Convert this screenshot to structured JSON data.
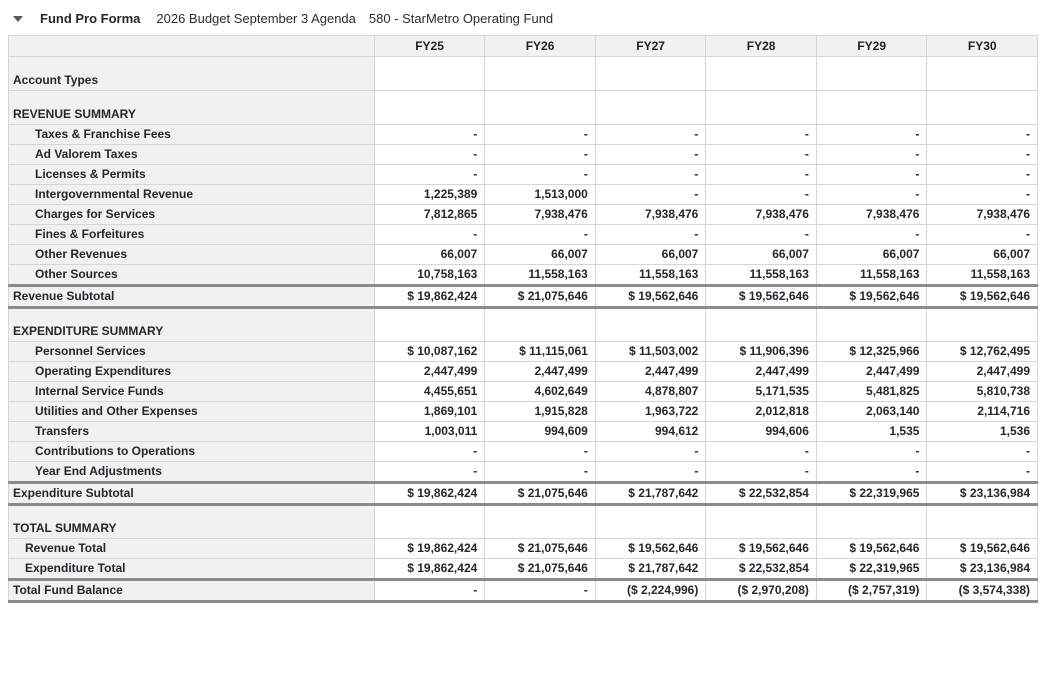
{
  "title_bar": {
    "collapse_icon": "triangle-down-icon",
    "title": "Fund Pro Forma",
    "budget": "2026 Budget September 3 Agenda",
    "fund": "580 - StarMetro Operating Fund"
  },
  "colors": {
    "header_bg": "#f1f1f1",
    "label_column_bg": "#f1f1f1",
    "grid_line": "#d6d6d6",
    "heavy_border": "#8b8b8b",
    "text": "#26262e"
  },
  "table": {
    "columns": [
      "FY25",
      "FY26",
      "FY27",
      "FY28",
      "FY29",
      "FY30"
    ],
    "rows": [
      {
        "label": "Account Types",
        "type": "section",
        "values": [
          "",
          "",
          "",
          "",
          "",
          ""
        ]
      },
      {
        "label": "REVENUE SUMMARY",
        "type": "section",
        "values": [
          "",
          "",
          "",
          "",
          "",
          ""
        ]
      },
      {
        "label": "Taxes & Franchise Fees",
        "type": "detail",
        "values": [
          "-",
          "-",
          "-",
          "-",
          "-",
          "-"
        ]
      },
      {
        "label": "Ad Valorem Taxes",
        "type": "detail",
        "values": [
          "-",
          "-",
          "-",
          "-",
          "-",
          "-"
        ]
      },
      {
        "label": "Licenses & Permits",
        "type": "detail",
        "values": [
          "-",
          "-",
          "-",
          "-",
          "-",
          "-"
        ]
      },
      {
        "label": "Intergovernmental Revenue",
        "type": "detail",
        "values": [
          "1,225,389",
          "1,513,000",
          "-",
          "-",
          "-",
          "-"
        ]
      },
      {
        "label": "Charges for Services",
        "type": "detail",
        "values": [
          "7,812,865",
          "7,938,476",
          "7,938,476",
          "7,938,476",
          "7,938,476",
          "7,938,476"
        ]
      },
      {
        "label": "Fines & Forfeitures",
        "type": "detail",
        "values": [
          "-",
          "-",
          "-",
          "-",
          "-",
          "-"
        ]
      },
      {
        "label": "Other Revenues",
        "type": "detail",
        "values": [
          "66,007",
          "66,007",
          "66,007",
          "66,007",
          "66,007",
          "66,007"
        ]
      },
      {
        "label": "Other Sources",
        "type": "detail",
        "values": [
          "10,758,163",
          "11,558,163",
          "11,558,163",
          "11,558,163",
          "11,558,163",
          "11,558,163"
        ]
      },
      {
        "label": "Revenue Subtotal",
        "type": "subtotal",
        "values": [
          "$ 19,862,424",
          "$ 21,075,646",
          "$ 19,562,646",
          "$ 19,562,646",
          "$ 19,562,646",
          "$ 19,562,646"
        ]
      },
      {
        "label": "EXPENDITURE SUMMARY",
        "type": "section",
        "values": [
          "",
          "",
          "",
          "",
          "",
          ""
        ]
      },
      {
        "label": "Personnel Services",
        "type": "detail",
        "values": [
          "$ 10,087,162",
          "$ 11,115,061",
          "$ 11,503,002",
          "$ 11,906,396",
          "$ 12,325,966",
          "$ 12,762,495"
        ]
      },
      {
        "label": "Operating Expenditures",
        "type": "detail",
        "values": [
          "2,447,499",
          "2,447,499",
          "2,447,499",
          "2,447,499",
          "2,447,499",
          "2,447,499"
        ]
      },
      {
        "label": "Internal Service Funds",
        "type": "detail",
        "values": [
          "4,455,651",
          "4,602,649",
          "4,878,807",
          "5,171,535",
          "5,481,825",
          "5,810,738"
        ]
      },
      {
        "label": "Utilities and Other Expenses",
        "type": "detail",
        "values": [
          "1,869,101",
          "1,915,828",
          "1,963,722",
          "2,012,818",
          "2,063,140",
          "2,114,716"
        ]
      },
      {
        "label": "Transfers",
        "type": "detail",
        "values": [
          "1,003,011",
          "994,609",
          "994,612",
          "994,606",
          "1,535",
          "1,536"
        ]
      },
      {
        "label": "Contributions to Operations",
        "type": "detail",
        "values": [
          "-",
          "-",
          "-",
          "-",
          "-",
          "-"
        ]
      },
      {
        "label": "Year End Adjustments",
        "type": "detail",
        "values": [
          "-",
          "-",
          "-",
          "-",
          "-",
          "-"
        ]
      },
      {
        "label": "Expenditure Subtotal",
        "type": "subtotal",
        "values": [
          "$ 19,862,424",
          "$ 21,075,646",
          "$ 21,787,642",
          "$ 22,532,854",
          "$ 22,319,965",
          "$ 23,136,984"
        ]
      },
      {
        "label": "TOTAL SUMMARY",
        "type": "section",
        "values": [
          "",
          "",
          "",
          "",
          "",
          ""
        ]
      },
      {
        "label": "Revenue Total",
        "type": "total",
        "values": [
          "$ 19,862,424",
          "$ 21,075,646",
          "$ 19,562,646",
          "$ 19,562,646",
          "$ 19,562,646",
          "$ 19,562,646"
        ]
      },
      {
        "label": "Expenditure Total",
        "type": "total",
        "values": [
          "$ 19,862,424",
          "$ 21,075,646",
          "$ 21,787,642",
          "$ 22,532,854",
          "$ 22,319,965",
          "$ 23,136,984"
        ]
      },
      {
        "label": "Total Fund Balance",
        "type": "grand",
        "values": [
          "-",
          "-",
          "($ 2,224,996)",
          "($ 2,970,208)",
          "($ 2,757,319)",
          "($ 3,574,338)"
        ]
      }
    ]
  }
}
